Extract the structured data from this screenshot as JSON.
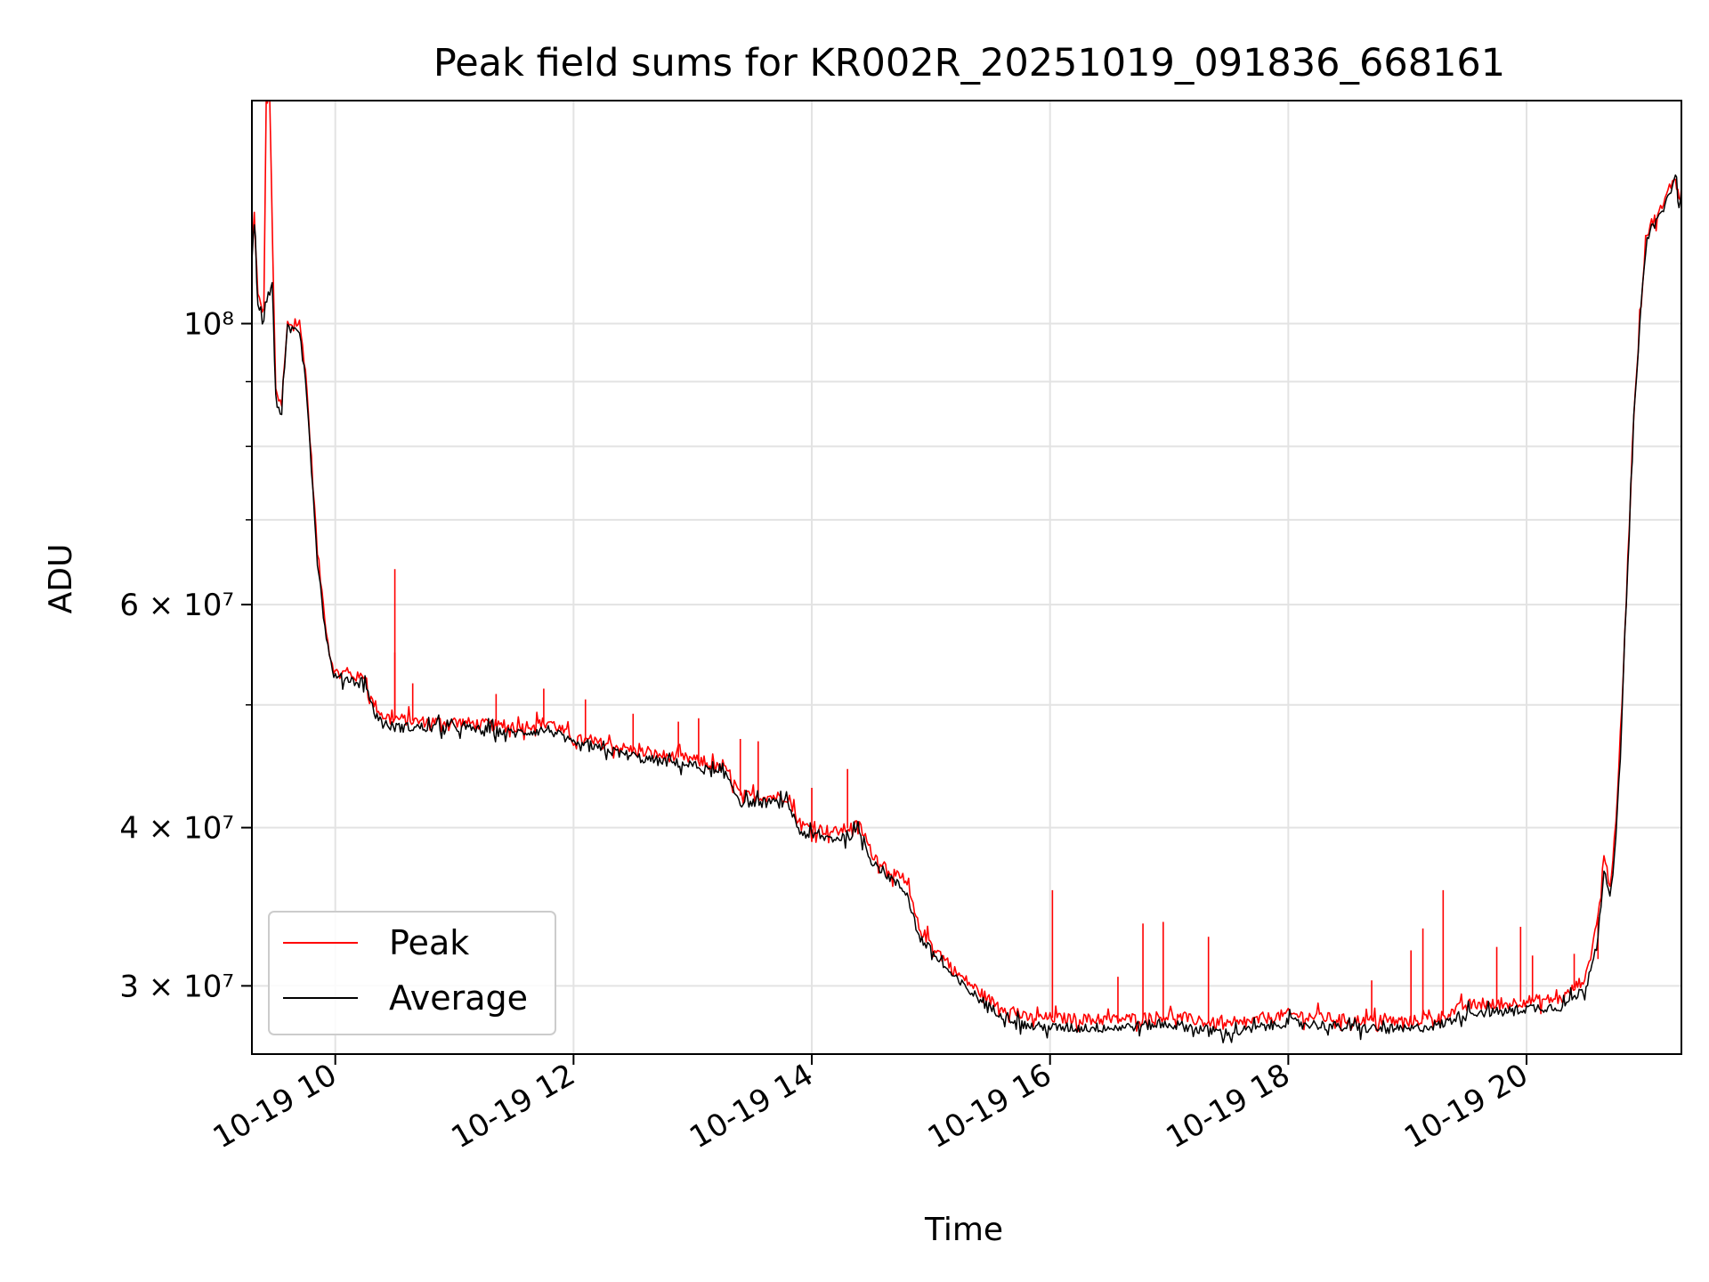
{
  "chart_data": {
    "type": "line",
    "title": "Peak field sums for KR002R_20251019_091836_668161",
    "xlabel": "Time",
    "ylabel": "ADU",
    "yscale": "log",
    "ylim": [
      26500000,
      150000000
    ],
    "xlim_hours": [
      9.3,
      21.3
    ],
    "grid": true,
    "legend_position": "lower-left",
    "x_ticks": [
      {
        "value": 10,
        "label": "10-19 10"
      },
      {
        "value": 12,
        "label": "10-19 12"
      },
      {
        "value": 14,
        "label": "10-19 14"
      },
      {
        "value": 16,
        "label": "10-19 16"
      },
      {
        "value": 18,
        "label": "10-19 18"
      },
      {
        "value": 20,
        "label": "10-19 20"
      }
    ],
    "y_ticks": [
      {
        "value": 30000000,
        "label": "3 × 10⁷"
      },
      {
        "value": 40000000,
        "label": "4 × 10⁷"
      },
      {
        "value": 60000000,
        "label": "6 × 10⁷"
      },
      {
        "value": 100000000,
        "label": "10⁸"
      }
    ],
    "y_minor_ticks": [
      50000000,
      70000000,
      80000000,
      90000000
    ],
    "series": [
      {
        "name": "Peak",
        "color": "#ff0000",
        "x": [
          9.3,
          9.32,
          9.35,
          9.4,
          9.42,
          9.45,
          9.5,
          9.55,
          9.6,
          9.65,
          9.7,
          9.75,
          9.8,
          9.85,
          9.9,
          9.95,
          10.0,
          10.1,
          10.2,
          10.25,
          10.3,
          10.4,
          10.5,
          10.7,
          11.0,
          11.5,
          11.8,
          12.0,
          12.3,
          12.6,
          13.0,
          13.3,
          13.4,
          13.8,
          13.9,
          14.0,
          14.2,
          14.4,
          14.5,
          14.8,
          14.9,
          15.2,
          15.5,
          15.8,
          16.0,
          16.5,
          17.0,
          17.5,
          18.0,
          18.5,
          19.0,
          19.3,
          19.5,
          19.8,
          20.0,
          20.3,
          20.5,
          20.6,
          20.65,
          20.7,
          20.75,
          20.8,
          20.85,
          20.9,
          20.95,
          21.0,
          21.05,
          21.1,
          21.15,
          21.2,
          21.25,
          21.28,
          21.3
        ],
        "values": [
          113000000,
          122000000,
          105000000,
          102000000,
          150000000,
          150000000,
          88000000,
          86000000,
          100000000,
          100000000,
          100000000,
          92000000,
          78000000,
          66000000,
          60000000,
          55000000,
          53000000,
          53000000,
          52500000,
          53000000,
          50500000,
          49000000,
          48800000,
          48500000,
          48500000,
          48000000,
          48500000,
          47000000,
          46500000,
          45800000,
          45300000,
          44300000,
          42400000,
          42300000,
          40200000,
          40000000,
          39700000,
          40200000,
          38200000,
          36000000,
          33300000,
          30800000,
          29200000,
          28300000,
          28300000,
          28200000,
          28400000,
          27900000,
          28500000,
          28200000,
          28100000,
          28400000,
          29000000,
          29000000,
          29200000,
          29300000,
          30500000,
          34000000,
          38000000,
          36000000,
          40000000,
          50000000,
          65000000,
          85000000,
          100000000,
          117000000,
          120000000,
          122000000,
          124000000,
          128000000,
          131000000,
          125000000,
          128000000
        ],
        "spikes": [
          {
            "x": 10.5,
            "value": 64000000
          },
          {
            "x": 10.5,
            "value": 55000000
          },
          {
            "x": 10.65,
            "value": 52000000
          },
          {
            "x": 11.35,
            "value": 51000000
          },
          {
            "x": 11.75,
            "value": 51500000
          },
          {
            "x": 12.1,
            "value": 50500000
          },
          {
            "x": 12.5,
            "value": 49200000
          },
          {
            "x": 12.88,
            "value": 48500000
          },
          {
            "x": 13.05,
            "value": 48800000
          },
          {
            "x": 13.4,
            "value": 47000000
          },
          {
            "x": 13.55,
            "value": 46800000
          },
          {
            "x": 14.0,
            "value": 43000000
          },
          {
            "x": 14.3,
            "value": 44500000
          },
          {
            "x": 16.02,
            "value": 35700000
          },
          {
            "x": 16.57,
            "value": 30500000
          },
          {
            "x": 16.78,
            "value": 33600000
          },
          {
            "x": 16.95,
            "value": 33700000
          },
          {
            "x": 17.33,
            "value": 32800000
          },
          {
            "x": 18.7,
            "value": 30300000
          },
          {
            "x": 19.03,
            "value": 32000000
          },
          {
            "x": 19.13,
            "value": 33300000
          },
          {
            "x": 19.3,
            "value": 35700000
          },
          {
            "x": 19.75,
            "value": 32200000
          },
          {
            "x": 19.95,
            "value": 33400000
          },
          {
            "x": 20.05,
            "value": 31700000
          },
          {
            "x": 20.4,
            "value": 31800000
          },
          {
            "x": 20.6,
            "value": 31500000
          }
        ]
      },
      {
        "name": "Average",
        "color": "#000000",
        "x": [
          9.3,
          9.32,
          9.35,
          9.4,
          9.45,
          9.47,
          9.5,
          9.55,
          9.6,
          9.65,
          9.7,
          9.75,
          9.8,
          9.85,
          9.9,
          9.95,
          10.0,
          10.1,
          10.2,
          10.25,
          10.3,
          10.4,
          10.5,
          10.7,
          11.0,
          11.5,
          11.8,
          12.0,
          12.3,
          12.6,
          13.0,
          13.3,
          13.4,
          13.8,
          13.9,
          14.0,
          14.2,
          14.4,
          14.5,
          14.8,
          14.9,
          15.2,
          15.5,
          15.8,
          16.0,
          16.5,
          17.0,
          17.5,
          18.0,
          18.5,
          19.0,
          19.3,
          19.5,
          19.8,
          20.0,
          20.3,
          20.5,
          20.6,
          20.65,
          20.7,
          20.75,
          20.8,
          20.85,
          20.9,
          20.95,
          21.0,
          21.05,
          21.1,
          21.15,
          21.2,
          21.25,
          21.28,
          21.3
        ],
        "values": [
          112000000,
          121000000,
          104000000,
          101000000,
          106000000,
          108000000,
          87000000,
          85000000,
          99000000,
          99000000,
          99000000,
          91000000,
          77000000,
          65000000,
          59000000,
          54500000,
          52500000,
          52500000,
          52000000,
          52500000,
          50000000,
          48300000,
          48000000,
          48000000,
          48000000,
          47500000,
          47800000,
          46500000,
          46000000,
          45300000,
          44800000,
          43800000,
          41900000,
          41800000,
          39700000,
          39400000,
          39200000,
          39700000,
          37700000,
          35500000,
          32800000,
          30400000,
          28800000,
          27900000,
          27800000,
          27800000,
          28000000,
          27500000,
          28100000,
          27800000,
          27700000,
          28000000,
          28600000,
          28600000,
          28800000,
          28900000,
          29900000,
          33000000,
          37000000,
          35000000,
          39000000,
          49000000,
          64000000,
          84000000,
          99000000,
          116000000,
          119000000,
          121000000,
          123000000,
          127000000,
          130000000,
          124000000,
          127000000
        ]
      }
    ]
  }
}
